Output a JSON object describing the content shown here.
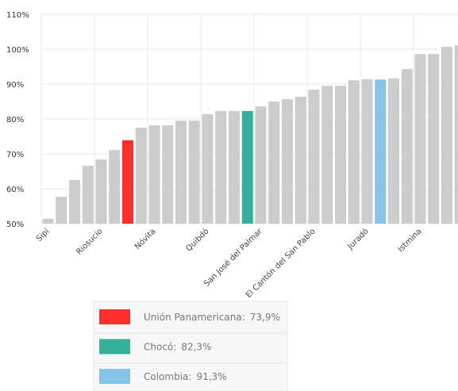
{
  "chart_data": {
    "type": "bar",
    "categories": [
      "Sipí",
      null,
      null,
      null,
      "Riosucio",
      null,
      null,
      null,
      "Nóvita",
      null,
      null,
      null,
      "Quibdó",
      null,
      null,
      null,
      "San José del Palmar",
      null,
      null,
      null,
      "El Cantón del San Pablo",
      null,
      null,
      null,
      "Juradó",
      null,
      null,
      null,
      "Istmina",
      null,
      null,
      null
    ],
    "values": [
      51.4,
      57.7,
      62.5,
      66.6,
      68.4,
      71.1,
      73.9,
      77.5,
      78.2,
      78.2,
      79.5,
      79.5,
      81.4,
      82.3,
      82.3,
      82.3,
      83.6,
      85.0,
      85.7,
      86.4,
      88.4,
      89.5,
      89.5,
      91.1,
      91.4,
      91.3,
      91.6,
      94.3,
      98.6,
      98.6,
      100.7,
      101.1
    ],
    "colors": [
      "#cccccc",
      "#cccccc",
      "#cccccc",
      "#cccccc",
      "#cccccc",
      "#cccccc",
      "#ff2e2e",
      "#cccccc",
      "#cccccc",
      "#cccccc",
      "#cccccc",
      "#cccccc",
      "#cccccc",
      "#cccccc",
      "#cccccc",
      "#35b09a",
      "#cccccc",
      "#cccccc",
      "#cccccc",
      "#cccccc",
      "#cccccc",
      "#cccccc",
      "#cccccc",
      "#cccccc",
      "#cccccc",
      "#85c4e4",
      "#cccccc",
      "#cccccc",
      "#cccccc",
      "#cccccc",
      "#cccccc",
      "#cccccc"
    ],
    "ylim": [
      50,
      110
    ],
    "yticks": [
      {
        "value": 50,
        "label": "50%"
      },
      {
        "value": 60,
        "label": "60%"
      },
      {
        "value": 70,
        "label": "70%"
      },
      {
        "value": 80,
        "label": "80%"
      },
      {
        "value": 90,
        "label": "90%"
      },
      {
        "value": 100,
        "label": "100%"
      },
      {
        "value": 110,
        "label": "110%"
      }
    ],
    "grid": true,
    "legend": [
      {
        "name": "Unión Panamericana:",
        "label": "73,9%",
        "color": "#ff2e2e"
      },
      {
        "name": "Chocó:",
        "label": "82,3%",
        "color": "#35b09a"
      },
      {
        "name": "Colombia:",
        "label": "91,3%",
        "color": "#85c4e4"
      }
    ]
  }
}
